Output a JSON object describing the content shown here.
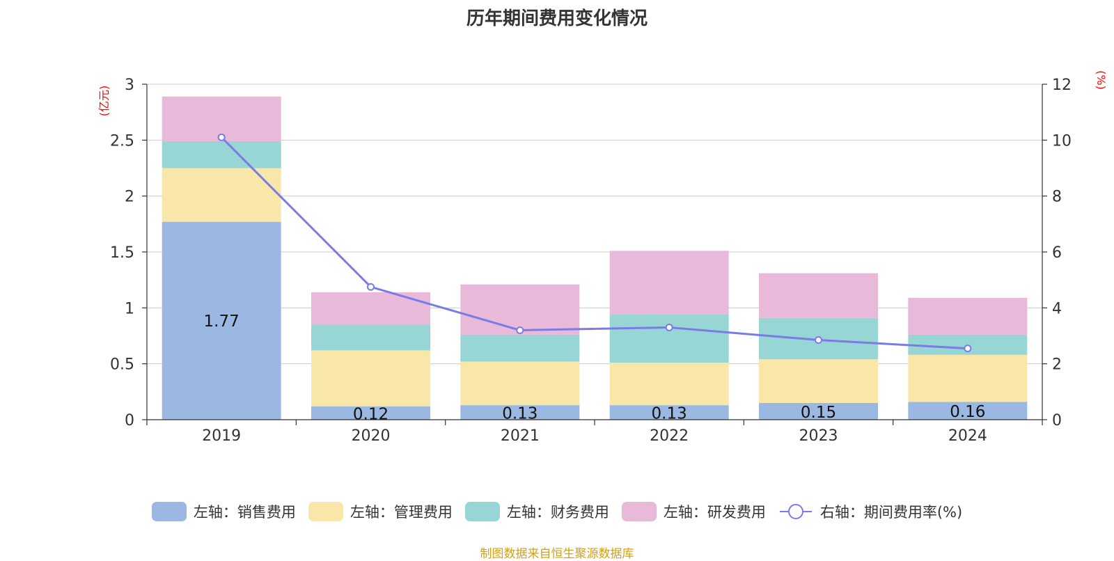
{
  "title": "历年期间费用变化情况",
  "left_axis_unit": "(亿元)",
  "right_axis_unit": "(%)",
  "footer": "制图数据来自恒生聚源数据库",
  "colors": {
    "sales": "#9bb8e2",
    "admin": "#f8e7a9",
    "finance": "#98d5d5",
    "rnd": "#e8b9d9",
    "rate": "#7b7be8",
    "axis_unit": "#ff0000",
    "footer": "#d4a017",
    "grid": "#cccccc"
  },
  "legend": [
    {
      "key": "sales",
      "label": "左轴：销售费用"
    },
    {
      "key": "admin",
      "label": "左轴：管理费用"
    },
    {
      "key": "finance",
      "label": "左轴：财务费用"
    },
    {
      "key": "rnd",
      "label": "左轴：研发费用"
    },
    {
      "key": "rate",
      "label": "右轴：期间费用率(%)"
    }
  ],
  "chart_data": {
    "type": "bar",
    "stacked": true,
    "categories": [
      "2019",
      "2020",
      "2021",
      "2022",
      "2023",
      "2024"
    ],
    "series": [
      {
        "name": "左轴：销售费用",
        "key": "sales",
        "axis": "left",
        "values": [
          1.77,
          0.12,
          0.13,
          0.13,
          0.15,
          0.16
        ],
        "labels": [
          "1.77",
          "0.12",
          "0.13",
          "0.13",
          "0.15",
          "0.16"
        ]
      },
      {
        "name": "左轴：管理费用",
        "key": "admin",
        "axis": "left",
        "values": [
          0.48,
          0.5,
          0.39,
          0.38,
          0.39,
          0.42
        ]
      },
      {
        "name": "左轴：财务费用",
        "key": "finance",
        "axis": "left",
        "values": [
          0.24,
          0.23,
          0.24,
          0.43,
          0.37,
          0.18
        ]
      },
      {
        "name": "左轴：研发费用",
        "key": "rnd",
        "axis": "left",
        "values": [
          0.4,
          0.29,
          0.45,
          0.57,
          0.4,
          0.33
        ]
      },
      {
        "name": "右轴：期间费用率(%)",
        "key": "rate",
        "axis": "right",
        "type": "line",
        "values": [
          10.1,
          4.75,
          3.2,
          3.3,
          2.85,
          2.55
        ]
      }
    ],
    "left_axis": {
      "min": 0,
      "max": 3,
      "ticks": [
        "0",
        "0.5",
        "1",
        "1.5",
        "2",
        "2.5",
        "3"
      ]
    },
    "right_axis": {
      "min": 0,
      "max": 12,
      "ticks": [
        "0",
        "2",
        "4",
        "6",
        "8",
        "10",
        "12"
      ]
    },
    "grid": true,
    "legend_position": "bottom"
  }
}
